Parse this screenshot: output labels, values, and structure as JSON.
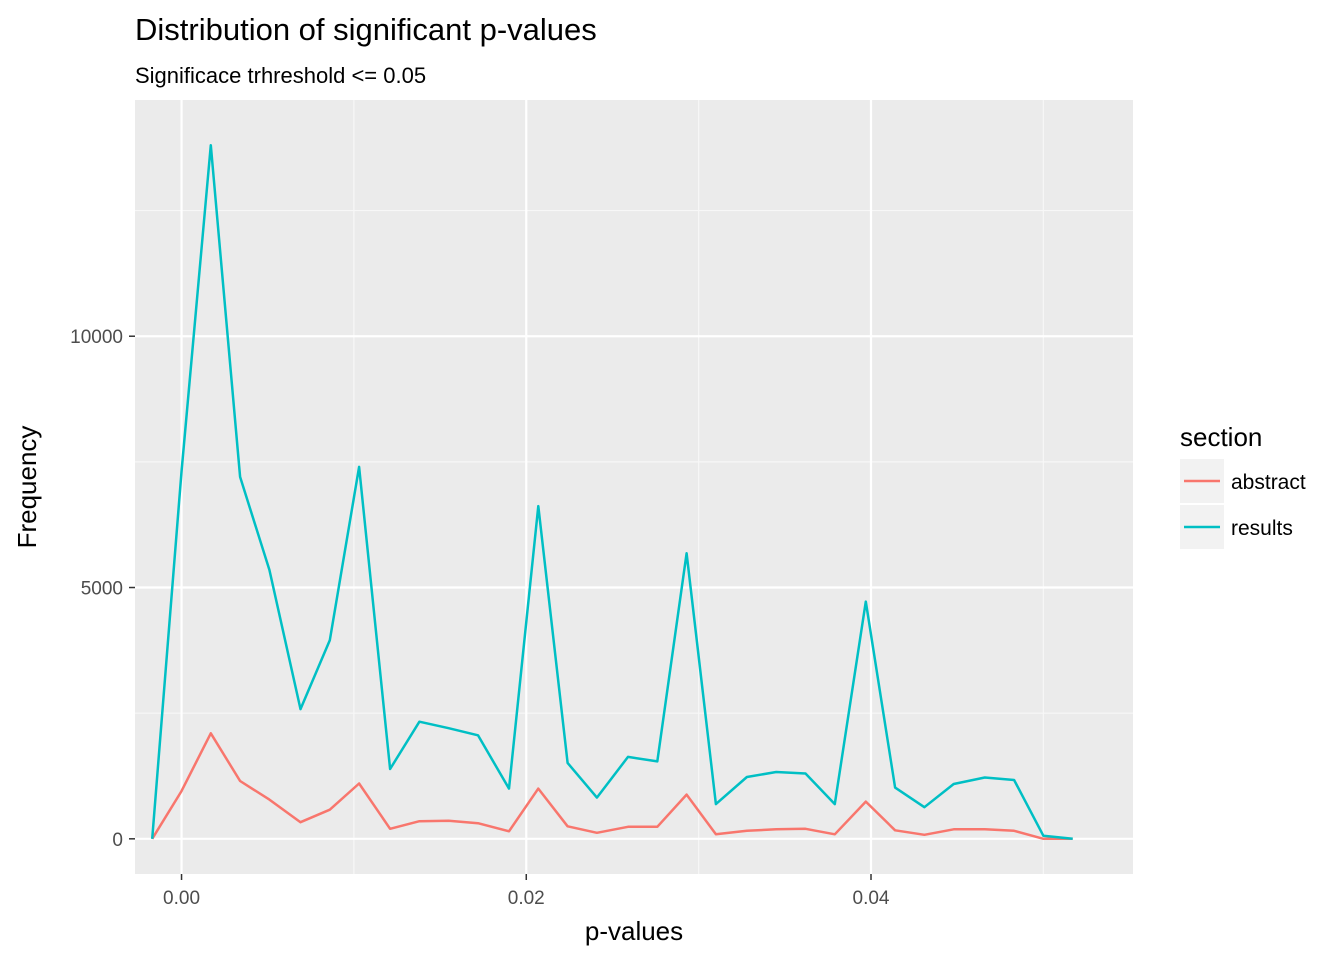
{
  "chart_data": {
    "type": "line",
    "title": "Distribution of significant p-values",
    "subtitle": "Significace trhreshold <= 0.05",
    "xlabel": "p-values",
    "ylabel": "Frequency",
    "xlim": [
      -0.0027,
      0.0552
    ],
    "ylim": [
      -700,
      14700
    ],
    "x_ticks": [
      0.0,
      0.02,
      0.04
    ],
    "x_tick_labels": [
      "0.00",
      "0.02",
      "0.04"
    ],
    "y_ticks": [
      0,
      5000,
      10000
    ],
    "y_tick_labels": [
      "0",
      "5000",
      "10000"
    ],
    "grid": true,
    "legend": {
      "title": "section",
      "position": "right"
    },
    "x": [
      -0.0017,
      0.0,
      0.0017,
      0.0034,
      0.0051,
      0.0069,
      0.0086,
      0.0103,
      0.0121,
      0.0138,
      0.0155,
      0.0172,
      0.019,
      0.0207,
      0.0224,
      0.0241,
      0.0259,
      0.0276,
      0.0293,
      0.031,
      0.0328,
      0.0345,
      0.0362,
      0.0379,
      0.0397,
      0.0414,
      0.0431,
      0.0448,
      0.0466,
      0.0483,
      0.05,
      0.0517
    ],
    "series": [
      {
        "name": "abstract",
        "color": "#F8766D",
        "values": [
          0,
          950,
          2100,
          1150,
          780,
          330,
          580,
          1100,
          200,
          350,
          360,
          310,
          150,
          1000,
          250,
          120,
          240,
          240,
          880,
          90,
          160,
          190,
          200,
          90,
          740,
          170,
          80,
          190,
          190,
          160,
          0,
          0
        ]
      },
      {
        "name": "results",
        "color": "#00BFC4",
        "values": [
          0,
          7300,
          13800,
          7200,
          5350,
          2580,
          3950,
          7400,
          1390,
          2330,
          2200,
          2060,
          1000,
          6620,
          1510,
          820,
          1630,
          1540,
          5680,
          690,
          1230,
          1330,
          1300,
          690,
          4720,
          1020,
          630,
          1090,
          1220,
          1170,
          60,
          0
        ]
      }
    ]
  }
}
